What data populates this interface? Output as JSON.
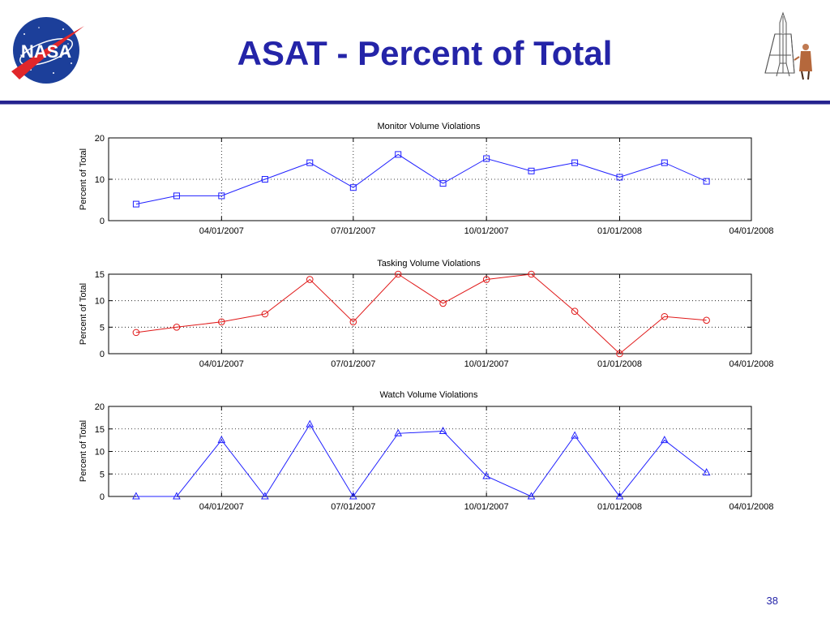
{
  "slide": {
    "title": "ASAT - Percent of Total",
    "page_number": "38"
  },
  "logo": {
    "name": "nasa-logo",
    "text": "NASA"
  },
  "colors": {
    "title": "#2424a8",
    "rule": "#25238f",
    "blue_series": "#2020ff",
    "red_series": "#e01818"
  },
  "chart_data": [
    {
      "type": "line",
      "title": "Monitor Volume Violations",
      "ylabel": "Percent of Total",
      "xlabel": "",
      "x_tick_labels": [
        "04/01/2007",
        "07/01/2007",
        "10/01/2007",
        "01/01/2008",
        "04/01/2008"
      ],
      "x_ticks": [
        "2007-04-01",
        "2007-07-01",
        "2007-10-01",
        "2008-01-01",
        "2008-04-01"
      ],
      "xlim": [
        "2007-01-13",
        "2008-04-01"
      ],
      "ylim": [
        0,
        20
      ],
      "y_ticks": [
        0,
        10,
        20
      ],
      "grid": true,
      "marker": "square",
      "color": "#2020ff",
      "x": [
        "2007-02-01",
        "2007-03-01",
        "2007-04-01",
        "2007-05-01",
        "2007-06-01",
        "2007-07-01",
        "2007-08-01",
        "2007-09-01",
        "2007-10-01",
        "2007-11-01",
        "2007-12-01",
        "2008-01-01",
        "2008-02-01",
        "2008-03-01"
      ],
      "values": [
        4,
        6,
        6,
        10,
        14,
        8,
        16,
        9,
        15,
        12,
        14,
        10.5,
        14,
        9.5
      ]
    },
    {
      "type": "line",
      "title": "Tasking Volume Violations",
      "ylabel": "Percent of Total",
      "xlabel": "",
      "x_tick_labels": [
        "04/01/2007",
        "07/01/2007",
        "10/01/2007",
        "01/01/2008",
        "04/01/2008"
      ],
      "x_ticks": [
        "2007-04-01",
        "2007-07-01",
        "2007-10-01",
        "2008-01-01",
        "2008-04-01"
      ],
      "xlim": [
        "2007-01-13",
        "2008-04-01"
      ],
      "ylim": [
        0,
        15
      ],
      "y_ticks": [
        0,
        5,
        10,
        15
      ],
      "grid": true,
      "marker": "circle",
      "color": "#e01818",
      "x": [
        "2007-02-01",
        "2007-03-01",
        "2007-04-01",
        "2007-05-01",
        "2007-06-01",
        "2007-07-01",
        "2007-08-01",
        "2007-09-01",
        "2007-10-01",
        "2007-11-01",
        "2007-12-01",
        "2008-01-01",
        "2008-02-01",
        "2008-03-01"
      ],
      "values": [
        4,
        5,
        6,
        7.5,
        14,
        6,
        15,
        9.5,
        14,
        15,
        8,
        0,
        7,
        6.3
      ]
    },
    {
      "type": "line",
      "title": "Watch Volume Violations",
      "ylabel": "Percent of Total",
      "xlabel": "",
      "x_tick_labels": [
        "04/01/2007",
        "07/01/2007",
        "10/01/2007",
        "01/01/2008",
        "04/01/2008"
      ],
      "x_ticks": [
        "2007-04-01",
        "2007-07-01",
        "2007-10-01",
        "2008-01-01",
        "2008-04-01"
      ],
      "xlim": [
        "2007-01-13",
        "2008-04-01"
      ],
      "ylim": [
        0,
        20
      ],
      "y_ticks": [
        0,
        5,
        10,
        15,
        20
      ],
      "grid": true,
      "marker": "triangle",
      "color": "#2020ff",
      "x": [
        "2007-02-01",
        "2007-03-01",
        "2007-04-01",
        "2007-05-01",
        "2007-06-01",
        "2007-07-01",
        "2007-08-01",
        "2007-09-01",
        "2007-10-01",
        "2007-11-01",
        "2007-12-01",
        "2008-01-01",
        "2008-02-01",
        "2008-03-01"
      ],
      "values": [
        0,
        0,
        12.5,
        0,
        16,
        0,
        14,
        14.5,
        4.5,
        0,
        13.5,
        0,
        12.5,
        5.3
      ]
    }
  ]
}
